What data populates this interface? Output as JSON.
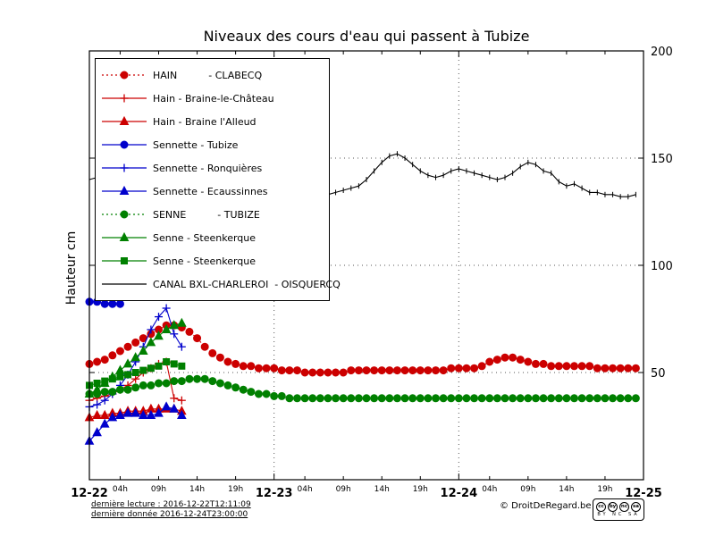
{
  "footer": {
    "last_read": "dernière lecture : 2016-12-22T12:11:09",
    "last_data": "dernière donnée  2016-12-24T23:00:00",
    "copyright": "© DroitDeRegard.be",
    "license_icons": [
      "cc",
      "by",
      "nc",
      "sa"
    ],
    "license_text": "BY NC SA"
  },
  "chart_data": {
    "type": "line",
    "title": "Niveaux des cours d'eau qui passent à Tubize",
    "ylabel": "Hauteur cm",
    "x_unit": "hours from 2016-12-22 00:00",
    "xlim": [
      0,
      72
    ],
    "ylim": [
      0,
      200
    ],
    "yticks": [
      {
        "v": 50,
        "label": "50"
      },
      {
        "v": 100,
        "label": "100"
      },
      {
        "v": 150,
        "label": "150"
      },
      {
        "v": 200,
        "label": "200"
      }
    ],
    "xticks_major": [
      {
        "h": 0,
        "label": "12-22"
      },
      {
        "h": 24,
        "label": "12-23"
      },
      {
        "h": 48,
        "label": "12-24"
      },
      {
        "h": 72,
        "label": "12-25"
      }
    ],
    "xticks_minor": [
      {
        "h": 4,
        "label": "04h"
      },
      {
        "h": 9,
        "label": "09h"
      },
      {
        "h": 14,
        "label": "14h"
      },
      {
        "h": 19,
        "label": "19h"
      },
      {
        "h": 28,
        "label": "04h"
      },
      {
        "h": 33,
        "label": "09h"
      },
      {
        "h": 38,
        "label": "14h"
      },
      {
        "h": 43,
        "label": "19h"
      },
      {
        "h": 52,
        "label": "04h"
      },
      {
        "h": 57,
        "label": "09h"
      },
      {
        "h": 62,
        "label": "14h"
      },
      {
        "h": 67,
        "label": "19h"
      }
    ],
    "grid": {
      "h_dotted": [
        50,
        100,
        150
      ],
      "v_dotted": [
        24,
        48
      ]
    },
    "legend_position": "upper left",
    "series": [
      {
        "name": "HAIN          - CLABECQ",
        "color": "#cc0000",
        "marker": "circle",
        "line": "dotted",
        "x0": 0,
        "values": [
          54,
          55,
          56,
          58,
          60,
          62,
          64,
          66,
          68,
          70,
          72,
          72,
          71,
          69,
          66,
          62,
          59,
          57,
          55,
          54,
          53,
          53,
          52,
          52,
          52,
          51,
          51,
          51,
          50,
          50,
          50,
          50,
          50,
          50,
          51,
          51,
          51,
          51,
          51,
          51,
          51,
          51,
          51,
          51,
          51,
          51,
          51,
          52,
          52,
          52,
          52,
          53,
          55,
          56,
          57,
          57,
          56,
          55,
          54,
          54,
          53,
          53,
          53,
          53,
          53,
          53,
          52,
          52,
          52,
          52,
          52,
          52
        ]
      },
      {
        "name": "Hain - Braine-le-Château",
        "color": "#cc0000",
        "marker": "plus",
        "line": "solid",
        "x0": 0,
        "values": [
          37,
          38,
          39,
          40,
          42,
          44,
          47,
          50,
          52,
          54,
          55,
          38,
          37
        ]
      },
      {
        "name": "Hain - Braine l'Alleud",
        "color": "#cc0000",
        "marker": "triangle",
        "line": "solid",
        "x0": 0,
        "values": [
          29,
          30,
          30,
          31,
          31,
          32,
          32,
          32,
          33,
          33,
          33,
          33,
          32
        ]
      },
      {
        "name": "Sennette - Tubize",
        "color": "#0000cc",
        "marker": "circle",
        "line": "solid",
        "x0": 0,
        "values": [
          83,
          83,
          82,
          82,
          82
        ]
      },
      {
        "name": "Sennette - Ronquières",
        "color": "#0000cc",
        "marker": "plus",
        "line": "solid",
        "x0": 0,
        "values": [
          34,
          35,
          37,
          40,
          44,
          49,
          55,
          62,
          70,
          76,
          80,
          68,
          62
        ]
      },
      {
        "name": "Sennette - Ecaussinnes",
        "color": "#0000cc",
        "marker": "triangle",
        "line": "solid",
        "x0": 0,
        "values": [
          18,
          22,
          26,
          29,
          30,
          31,
          31,
          30,
          30,
          31,
          34,
          33,
          30
        ]
      },
      {
        "name": "SENNE          - TUBIZE",
        "color": "#008000",
        "marker": "circle",
        "line": "dotted",
        "x0": 0,
        "values": [
          40,
          40,
          41,
          41,
          42,
          42,
          43,
          44,
          44,
          45,
          45,
          46,
          46,
          47,
          47,
          47,
          46,
          45,
          44,
          43,
          42,
          41,
          40,
          40,
          39,
          39,
          38,
          38,
          38,
          38,
          38,
          38,
          38,
          38,
          38,
          38,
          38,
          38,
          38,
          38,
          38,
          38,
          38,
          38,
          38,
          38,
          38,
          38,
          38,
          38,
          38,
          38,
          38,
          38,
          38,
          38,
          38,
          38,
          38,
          38,
          38,
          38,
          38,
          38,
          38,
          38,
          38,
          38,
          38,
          38,
          38,
          38
        ]
      },
      {
        "name": "Senne - Steenkerque",
        "color": "#008000",
        "marker": "triangle",
        "line": "solid",
        "x0": 0,
        "values": [
          40,
          42,
          45,
          48,
          51,
          54,
          57,
          60,
          64,
          67,
          70,
          72,
          73
        ]
      },
      {
        "name": "Senne - Steenkerque",
        "color": "#008000",
        "marker": "square",
        "line": "solid",
        "x0": 0,
        "values": [
          44,
          45,
          46,
          47,
          48,
          49,
          50,
          51,
          52,
          53,
          55,
          54,
          53
        ]
      },
      {
        "name": "CANAL BXL-CHARLEROI  - OISQUERCQ",
        "color": "#000000",
        "marker": "vtick",
        "line": "solid",
        "x0": 0,
        "values": [
          140,
          141,
          142,
          143,
          143,
          144,
          144,
          143,
          143,
          142,
          142,
          141,
          141,
          140,
          140,
          139,
          139,
          138,
          138,
          137,
          137,
          136,
          136,
          135,
          135,
          135,
          134,
          134,
          134,
          133,
          133,
          133,
          134,
          135,
          136,
          137,
          140,
          144,
          148,
          151,
          152,
          150,
          147,
          144,
          142,
          141,
          142,
          144,
          145,
          144,
          143,
          142,
          141,
          140,
          141,
          143,
          146,
          148,
          147,
          144,
          143,
          139,
          137,
          138,
          136,
          134,
          134,
          133,
          133,
          132,
          132,
          133
        ]
      }
    ]
  }
}
